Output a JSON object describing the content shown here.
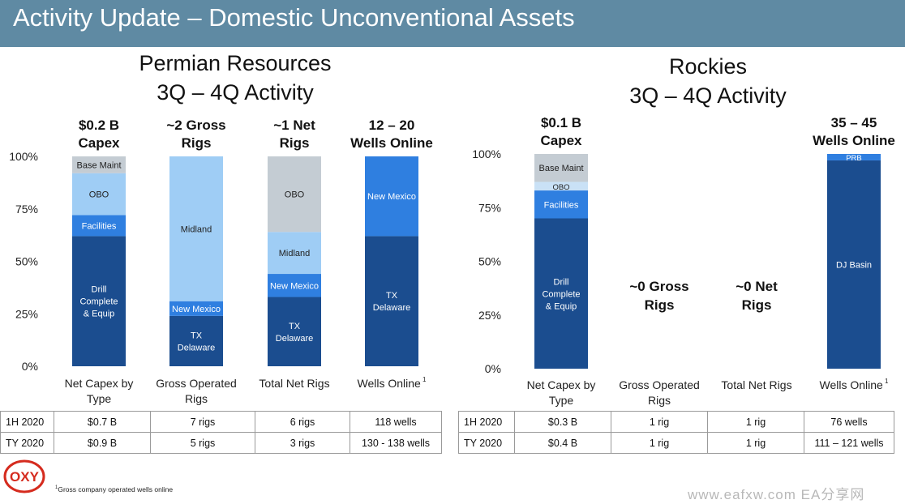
{
  "header": {
    "title": "Activity Update – Domestic Unconventional Assets"
  },
  "colors": {
    "header_bg": "#5f8aa3",
    "dark_blue": "#1b4d8f",
    "medium_blue": "#2f7fe0",
    "light_blue": "#9fcdf5",
    "pale_blue": "#c9e1f6",
    "gray": "#c4ccd3"
  },
  "chart_data": [
    {
      "type": "stacked_bar",
      "title": "Permian Resources",
      "subtitle": "3Q – 4Q Activity",
      "y_ticks": [
        "100%",
        "75%",
        "50%",
        "25%",
        "0%"
      ],
      "ylim": [
        0,
        100
      ],
      "bars": [
        {
          "category": "Net Capex by Type",
          "top_label": [
            "$0.2 B",
            "Capex"
          ],
          "segments": [
            {
              "name": "Drill Complete & Equip",
              "lines": [
                "Drill",
                "Complete",
                "& Equip"
              ],
              "from": 0,
              "to": 62,
              "color": "#1b4d8f"
            },
            {
              "name": "Facilities",
              "lines": [
                "Facilities"
              ],
              "from": 62,
              "to": 72,
              "color": "#2f7fe0"
            },
            {
              "name": "OBO",
              "lines": [
                "OBO"
              ],
              "from": 72,
              "to": 92,
              "color": "#9fcdf5"
            },
            {
              "name": "Base Maint",
              "lines": [
                "Base Maint"
              ],
              "from": 92,
              "to": 100,
              "color": "#c4ccd3"
            }
          ]
        },
        {
          "category": "Gross Operated Rigs",
          "top_label": [
            "~2 Gross",
            "Rigs"
          ],
          "segments": [
            {
              "name": "TX Delaware",
              "lines": [
                "TX",
                "Delaware"
              ],
              "from": 0,
              "to": 24,
              "color": "#1b4d8f"
            },
            {
              "name": "New Mexico",
              "lines": [
                "New Mexico"
              ],
              "from": 24,
              "to": 31,
              "color": "#2f7fe0"
            },
            {
              "name": "Midland",
              "lines": [
                "Midland"
              ],
              "from": 31,
              "to": 100,
              "color": "#9fcdf5"
            }
          ]
        },
        {
          "category": "Total Net Rigs",
          "top_label": [
            "~1 Net",
            "Rigs"
          ],
          "segments": [
            {
              "name": "TX Delaware",
              "lines": [
                "TX",
                "Delaware"
              ],
              "from": 0,
              "to": 33,
              "color": "#1b4d8f"
            },
            {
              "name": "New Mexico",
              "lines": [
                "New Mexico"
              ],
              "from": 33,
              "to": 44,
              "color": "#2f7fe0"
            },
            {
              "name": "Midland",
              "lines": [
                "Midland"
              ],
              "from": 44,
              "to": 64,
              "color": "#9fcdf5"
            },
            {
              "name": "OBO",
              "lines": [
                "OBO"
              ],
              "from": 64,
              "to": 100,
              "color": "#c4ccd3"
            }
          ]
        },
        {
          "category": "Wells Online",
          "top_label": [
            "12 – 20",
            "Wells Online"
          ],
          "segments": [
            {
              "name": "TX Delaware",
              "lines": [
                "TX",
                "Delaware"
              ],
              "from": 0,
              "to": 62,
              "color": "#1b4d8f"
            },
            {
              "name": "New Mexico",
              "lines": [
                "New Mexico"
              ],
              "from": 62,
              "to": 100,
              "color": "#2f7fe0"
            }
          ]
        }
      ],
      "table": {
        "rows": [
          {
            "label": "1H 2020",
            "values": [
              "$0.7 B",
              "7 rigs",
              "6 rigs",
              "118 wells"
            ]
          },
          {
            "label": "TY 2020",
            "values": [
              "$0.9 B",
              "5 rigs",
              "3 rigs",
              "130 - 138 wells"
            ]
          }
        ]
      }
    },
    {
      "type": "stacked_bar",
      "title": "Rockies",
      "subtitle": "3Q – 4Q Activity",
      "y_ticks": [
        "100%",
        "75%",
        "50%",
        "25%",
        "0%"
      ],
      "ylim": [
        0,
        100
      ],
      "bars": [
        {
          "category": "Net Capex by Type",
          "top_label": [
            "$0.1 B",
            "Capex"
          ],
          "segments": [
            {
              "name": "Drill Complete & Equip",
              "lines": [
                "Drill",
                "Complete",
                "& Equip"
              ],
              "from": 0,
              "to": 70,
              "color": "#1b4d8f"
            },
            {
              "name": "Facilities",
              "lines": [
                "Facilities"
              ],
              "from": 70,
              "to": 83,
              "color": "#2f7fe0"
            },
            {
              "name": "OBO",
              "lines": [
                "OBO"
              ],
              "from": 83,
              "to": 87,
              "color": "#c9e1f6"
            },
            {
              "name": "Base Maint",
              "lines": [
                "Base Maint"
              ],
              "from": 87,
              "to": 100,
              "color": "#c4ccd3"
            }
          ]
        },
        {
          "category": "Gross Operated Rigs",
          "top_label": [],
          "center_label": [
            "~0 Gross",
            "Rigs"
          ],
          "segments": []
        },
        {
          "category": "Total Net Rigs",
          "top_label": [],
          "center_label": [
            "~0 Net",
            "Rigs"
          ],
          "segments": []
        },
        {
          "category": "Wells Online",
          "top_label": [
            "35 – 45",
            "Wells Online"
          ],
          "segments": [
            {
              "name": "DJ Basin",
              "lines": [
                "DJ Basin"
              ],
              "from": 0,
              "to": 97,
              "color": "#1b4d8f"
            },
            {
              "name": "PRB",
              "lines": [
                "PRB"
              ],
              "from": 97,
              "to": 100,
              "color": "#2f7fe0"
            }
          ]
        }
      ],
      "table": {
        "rows": [
          {
            "label": "1H 2020",
            "values": [
              "$0.3 B",
              "1 rig",
              "1 rig",
              "76 wells"
            ]
          },
          {
            "label": "TY 2020",
            "values": [
              "$0.4 B",
              "1 rig",
              "1 rig",
              "111 – 121 wells"
            ]
          }
        ]
      }
    }
  ],
  "footnote": {
    "marker": "1",
    "text": "Gross company operated wells online"
  },
  "logo": {
    "text": "OXY"
  },
  "watermark": "www.eafxw.com  EA分享网"
}
